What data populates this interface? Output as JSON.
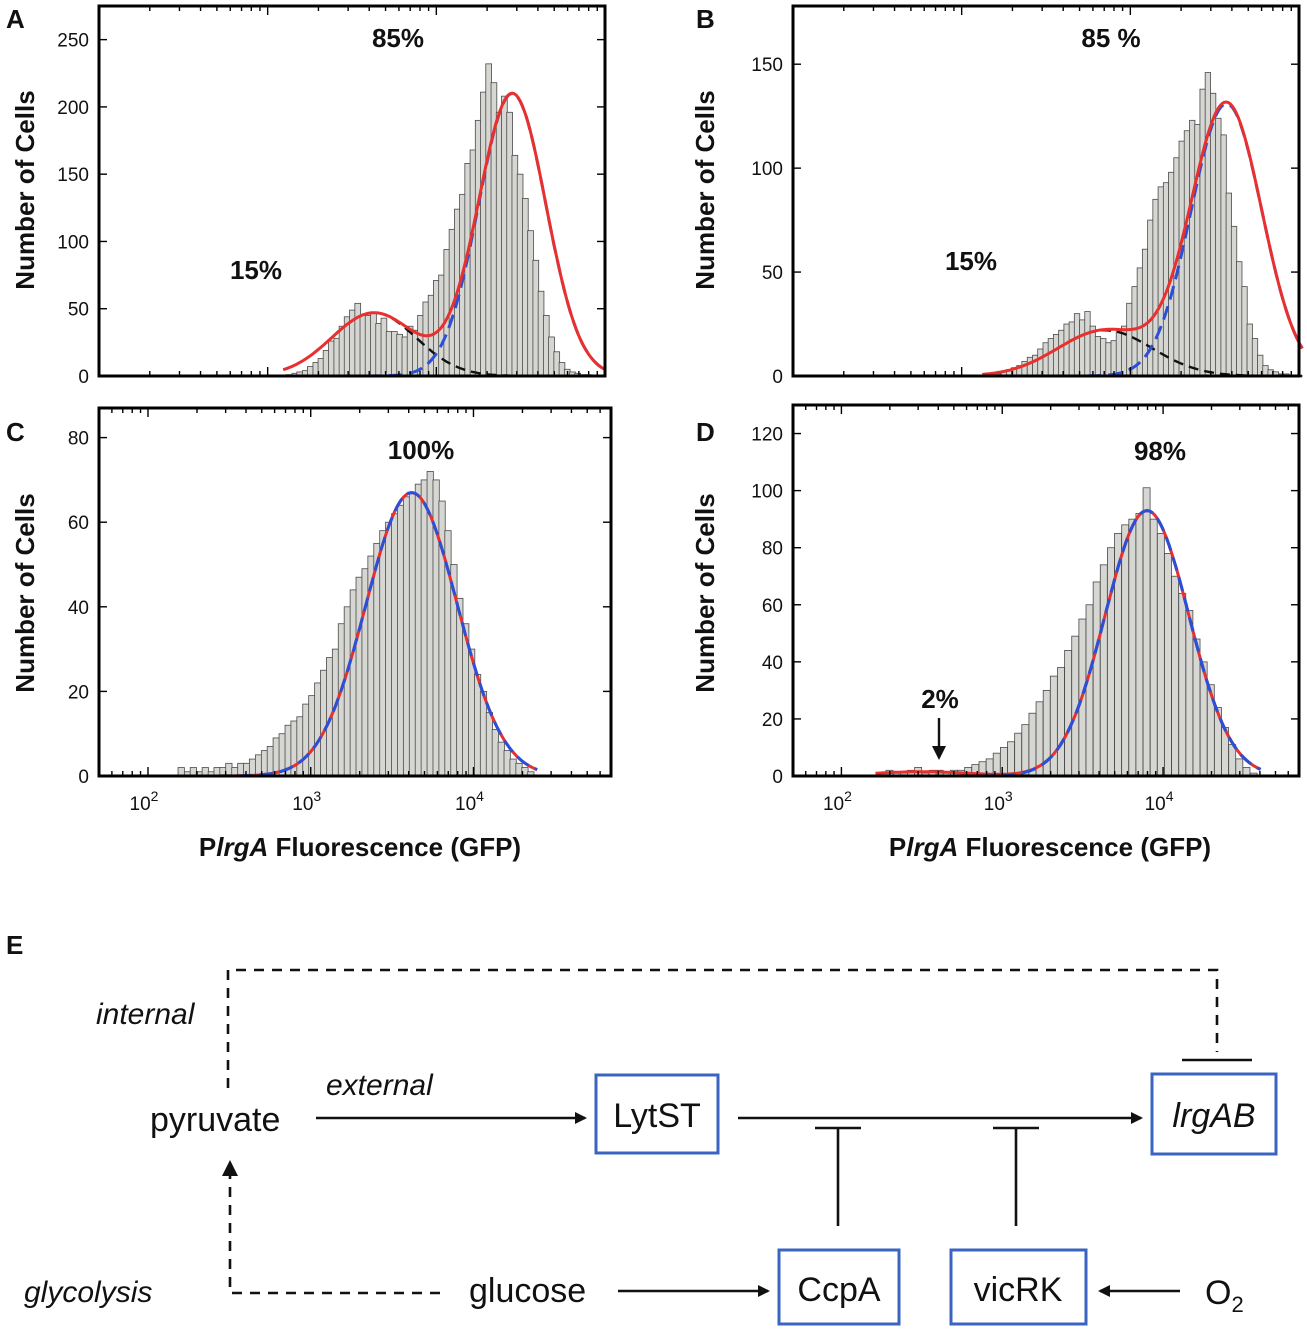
{
  "chart_data": [
    {
      "panel": "A",
      "type": "bar",
      "scale": "log-x",
      "ylabel": "Number of Cells",
      "xlabel": "",
      "ylim": [
        0,
        275
      ],
      "yticks": [
        0,
        50,
        100,
        150,
        200,
        250
      ],
      "xlim": [
        10,
        10000
      ],
      "xticks": [],
      "xtick_labels": [],
      "annotations": [
        {
          "text": "85%"
        },
        {
          "text": "15%"
        }
      ],
      "components": [
        {
          "name": "15%",
          "amp": 47,
          "mu_log": 2.63,
          "sigma_log": 0.25,
          "style": "black-dashed"
        },
        {
          "name": "85%",
          "amp": 210,
          "mu_log": 3.45,
          "sigma_log": 0.2,
          "style": "blue-dashed"
        }
      ],
      "series": [
        {
          "name": "histogram",
          "x": [
            134,
            145,
            155,
            167,
            179,
            193,
            207,
            222,
            239,
            257,
            276,
            296,
            318,
            342,
            367,
            394,
            424,
            455,
            489,
            525,
            564,
            606,
            651,
            699,
            751,
            806,
            866,
            931,
            1000,
            1074,
            1153,
            1239,
            1331,
            1429,
            1535,
            1649,
            1771,
            1902,
            2043,
            2195,
            2358,
            2532,
            2720,
            2921,
            3138,
            3370,
            3620,
            3888,
            4176,
            4486,
            4818,
            5175,
            5559,
            5970,
            6413,
            6888,
            7398,
            7947,
            8536,
            9168
          ],
          "values": [
            1,
            2,
            3,
            4,
            7,
            10,
            13,
            19,
            26,
            28,
            37,
            44,
            49,
            54,
            45,
            45,
            47,
            39,
            43,
            33,
            33,
            31,
            29,
            37,
            34,
            45,
            55,
            60,
            71,
            75,
            94,
            109,
            124,
            135,
            158,
            168,
            190,
            211,
            232,
            218,
            196,
            208,
            196,
            164,
            150,
            132,
            108,
            86,
            63,
            45,
            29,
            18,
            10,
            5,
            3,
            2,
            1,
            1,
            0,
            0
          ]
        }
      ]
    },
    {
      "panel": "B",
      "type": "bar",
      "scale": "log-x",
      "ylabel": "Number of Cells",
      "xlabel": "",
      "ylim": [
        0,
        178
      ],
      "yticks": [
        0,
        50,
        100,
        150
      ],
      "xlim": [
        10,
        10000
      ],
      "xticks": [],
      "xtick_labels": [],
      "annotations": [
        {
          "text": "85 %"
        },
        {
          "text": "15%"
        }
      ],
      "components": [
        {
          "name": "15%",
          "amp": 22,
          "mu_log": 2.85,
          "sigma_log": 0.28,
          "style": "black-dashed"
        },
        {
          "name": "85%",
          "amp": 131,
          "mu_log": 3.57,
          "sigma_log": 0.21,
          "style": "blue-dashed"
        }
      ],
      "series": [
        {
          "name": "histogram",
          "x": [
            143,
            154,
            165,
            178,
            191,
            205,
            220,
            236,
            254,
            273,
            293,
            315,
            338,
            363,
            390,
            419,
            450,
            483,
            519,
            557,
            599,
            643,
            691,
            742,
            797,
            856,
            919,
            987,
            1060,
            1139,
            1223,
            1314,
            1411,
            1516,
            1628,
            1748,
            1878,
            2017,
            2166,
            2327,
            2499,
            2684,
            2883,
            3096,
            3325,
            3572,
            3836,
            4120,
            4425,
            4753,
            5105,
            5483,
            5889,
            6325,
            6793,
            7296,
            7837,
            8417,
            9040,
            9710
          ],
          "values": [
            1,
            1,
            1,
            2,
            3,
            4,
            5,
            7,
            9,
            10,
            13,
            16,
            18,
            20,
            22,
            25,
            26,
            30,
            27,
            31,
            24,
            19,
            18,
            16,
            17,
            22,
            24,
            35,
            43,
            52,
            61,
            75,
            85,
            91,
            93,
            98,
            105,
            113,
            118,
            123,
            121,
            138,
            146,
            136,
            124,
            116,
            88,
            72,
            55,
            43,
            25,
            18,
            10,
            5,
            3,
            2,
            1,
            1,
            0,
            0
          ]
        }
      ]
    },
    {
      "panel": "C",
      "type": "bar",
      "scale": "log-x",
      "ylabel": "Number of Cells",
      "xlabel": "PlrgA Fluorescence (GFP)",
      "ylim": [
        0,
        87
      ],
      "yticks": [
        0,
        20,
        40,
        60,
        80
      ],
      "xlim": [
        50,
        70000
      ],
      "xticks": [
        100,
        1000,
        10000
      ],
      "xtick_labels": [
        "10",
        "10",
        "10"
      ],
      "xtick_exps": [
        "2",
        "3",
        "4"
      ],
      "annotations": [
        {
          "text": "100%"
        }
      ],
      "components": [
        {
          "name": "100%",
          "amp": 67,
          "mu_log": 3.62,
          "sigma_log": 0.28,
          "style": "blue-dashed"
        }
      ],
      "series": [
        {
          "name": "histogram",
          "x": [
            160,
            175,
            190,
            207,
            225,
            245,
            266,
            289,
            314,
            342,
            372,
            404,
            439,
            478,
            520,
            565,
            614,
            668,
            727,
            790,
            859,
            934,
            1016,
            1105,
            1201,
            1306,
            1420,
            1544,
            1679,
            1826,
            1985,
            2158,
            2347,
            2552,
            2775,
            3017,
            3281,
            3568,
            3879,
            4218,
            4587,
            4987,
            5423,
            5897,
            6412,
            6972,
            7581,
            8244,
            8964,
            9747,
            10599,
            11525,
            12532,
            13627,
            14817,
            16112,
            17520,
            19050,
            20715,
            22525
          ],
          "values": [
            2,
            1,
            2,
            1,
            2,
            1,
            2,
            2,
            3,
            2,
            3,
            3,
            4,
            5,
            6,
            7,
            9,
            10,
            12,
            13,
            14,
            17,
            19,
            22,
            25,
            28,
            30,
            36,
            40,
            44,
            47,
            49,
            52,
            55,
            58,
            60,
            62,
            64,
            66,
            67,
            69,
            70,
            72,
            70,
            65,
            58,
            50,
            42,
            36,
            30,
            24,
            20,
            15,
            11,
            8,
            6,
            4,
            3,
            2,
            1
          ]
        }
      ]
    },
    {
      "panel": "D",
      "type": "bar",
      "scale": "log-x",
      "ylabel": "Number of Cells",
      "xlabel": "PlrgA Fluorescence (GFP)",
      "ylim": [
        0,
        130
      ],
      "yticks": [
        0,
        20,
        40,
        60,
        80,
        100,
        120
      ],
      "xlim": [
        50,
        70000
      ],
      "xticks": [
        100,
        1000,
        10000
      ],
      "xtick_labels": [
        "10",
        "10",
        "10"
      ],
      "xtick_exps": [
        "2",
        "3",
        "4"
      ],
      "annotations": [
        {
          "text": "98%"
        },
        {
          "text": "2%"
        }
      ],
      "components": [
        {
          "name": "98%",
          "amp": 93,
          "mu_log": 3.9,
          "sigma_log": 0.26,
          "style": "blue-dashed"
        },
        {
          "name": "2%",
          "amp": 1.5,
          "mu_log": 2.5,
          "sigma_log": 0.3,
          "style": "black-dashed"
        }
      ],
      "series": [
        {
          "name": "histogram",
          "x": [
            180,
            199,
            221,
            245,
            271,
            300,
            333,
            369,
            408,
            452,
            501,
            555,
            614,
            680,
            754,
            835,
            924,
            1024,
            1134,
            1256,
            1391,
            1541,
            1706,
            1890,
            2093,
            2318,
            2568,
            2844,
            3150,
            3488,
            3864,
            4279,
            4739,
            5249,
            5813,
            6438,
            7130,
            7897,
            8746,
            9687,
            10728,
            11882,
            13159,
            14574,
            16141,
            17876,
            19799,
            21928,
            24286,
            26897,
            29789,
            32992,
            36540
          ],
          "values": [
            1,
            2,
            1,
            1,
            2,
            3,
            1,
            2,
            2,
            1,
            2,
            2,
            3,
            4,
            5,
            6,
            8,
            10,
            12,
            15,
            18,
            22,
            26,
            30,
            35,
            38,
            44,
            49,
            55,
            60,
            68,
            74,
            80,
            85,
            88,
            90,
            92,
            101,
            90,
            85,
            78,
            70,
            64,
            58,
            48,
            40,
            32,
            24,
            17,
            11,
            6,
            3,
            1
          ]
        }
      ]
    }
  ],
  "panels": {
    "A": {
      "letter": "A",
      "ylabel": "Number of Cells"
    },
    "B": {
      "letter": "B",
      "ylabel": "Number of Cells"
    },
    "C": {
      "letter": "C",
      "ylabel": "Number of Cells",
      "xlabel_prefix": "P",
      "xlabel_italic": "lrgA",
      "xlabel_suffix": " Fluorescence (GFP)"
    },
    "D": {
      "letter": "D",
      "ylabel": "Number of Cells",
      "xlabel_prefix": "P",
      "xlabel_italic": "lrgA",
      "xlabel_suffix": " Fluorescence (GFP)"
    }
  },
  "diagram": {
    "letter": "E",
    "nodes": {
      "pyruvate": "pyruvate",
      "lytst": "LytST",
      "lrgab": "lrgAB",
      "glucose": "glucose",
      "ccpa": "CcpA",
      "vicrk": "vicRK",
      "o2": "O",
      "o2_sub": "2"
    },
    "labels": {
      "internal": "internal",
      "external": "external",
      "glycolysis": "glycolysis"
    }
  },
  "colors": {
    "total_fit": "#e8302e",
    "high_component": "#2b4fd6",
    "low_component": "#111111",
    "node_border": "#3a64c0",
    "bar_fill": "#d6d6d2"
  }
}
